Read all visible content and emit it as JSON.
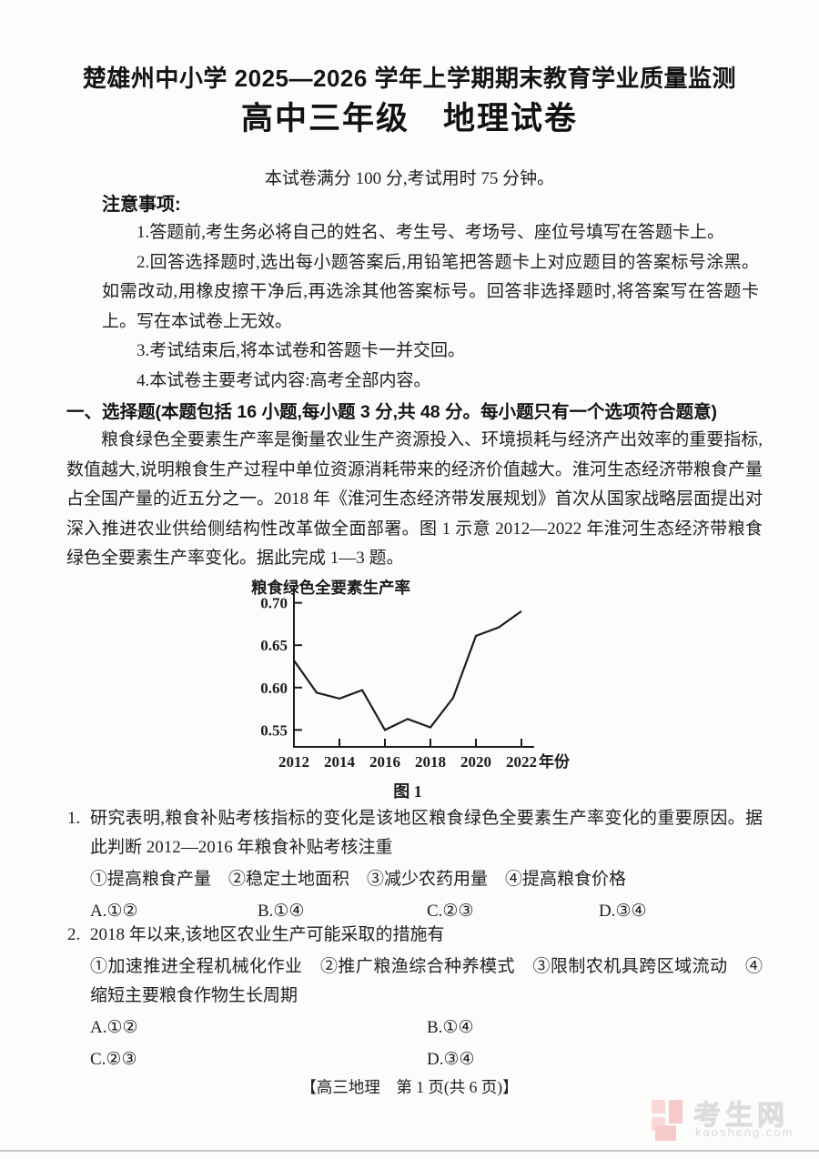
{
  "doc": {
    "title_line1": "楚雄州中小学 2025—2026 学年上学期期末教育学业质量监测",
    "title_line2": "高中三年级　地理试卷",
    "exam_info": "本试卷满分 100 分,考试用时 75 分钟。",
    "footer": "【高三地理　第 1 页(共 6 页)】"
  },
  "notice": {
    "heading": "注意事项:",
    "items": [
      "1.答题前,考生务必将自己的姓名、考生号、考场号、座位号填写在答题卡上。",
      "2.回答选择题时,选出每小题答案后,用铅笔把答题卡上对应题目的答案标号涂黑。如需改动,用橡皮擦干净后,再选涂其他答案标号。回答非选择题时,将答案写在答题卡上。写在本试卷上无效。",
      "3.考试结束后,将本试卷和答题卡一并交回。",
      "4.本试卷主要考试内容:高考全部内容。"
    ]
  },
  "section_one": {
    "heading": "一、选择题(本题包括 16 小题,每小题 3 分,共 48 分。每小题只有一个选项符合题意)",
    "intro": "粮食绿色全要素生产率是衡量农业生产资源投入、环境损耗与经济产出效率的重要指标,数值越大,说明粮食生产过程中单位资源消耗带来的经济价值越大。淮河生态经济带粮食产量占全国产量的近五分之一。2018 年《淮河生态经济带发展规划》首次从国家战略层面提出对深入推进农业供给侧结构性改革做全面部署。图 1 示意 2012—2022 年淮河生态经济带粮食绿色全要素生产率变化。据此完成 1—3 题。"
  },
  "questions": [
    {
      "number": "1.",
      "stem": "研究表明,粮食补贴考核指标的变化是该地区粮食绿色全要素生产率变化的重要原因。据此判断 2012—2016 年粮食补贴考核注重",
      "sub_options": "①提高粮食产量　②稳定土地面积　③减少农药用量　④提高粮食价格",
      "choices": [
        "A.①②",
        "B.①④",
        "C.②③",
        "D.③④"
      ]
    },
    {
      "number": "2.",
      "stem": "2018 年以来,该地区农业生产可能采取的措施有",
      "sub_options": "①加速推进全程机械化作业　②推广粮渔综合种养模式　③限制农机具跨区域流动　④缩短主要粮食作物生长周期",
      "choices": [
        "A.①②",
        "B.①④",
        "C.②③",
        "D.③④"
      ]
    }
  ],
  "watermark": {
    "cn": "考生网",
    "en": "kaosheng.com",
    "logo_pink_light": "#fbd8d8",
    "logo_pink_dark": "#f7caca"
  },
  "chart_data": {
    "type": "line",
    "title": "",
    "ylabel": "粮食绿色全要素生产率",
    "xlabel": "年份",
    "caption": "图 1",
    "x": [
      2012,
      2013,
      2014,
      2015,
      2016,
      2017,
      2018,
      2019,
      2020,
      2021,
      2022
    ],
    "values": [
      0.632,
      0.594,
      0.587,
      0.597,
      0.55,
      0.563,
      0.553,
      0.588,
      0.661,
      0.671,
      0.69
    ],
    "yticks": [
      0.55,
      0.6,
      0.65,
      0.7
    ],
    "xticks": [
      2012,
      2014,
      2016,
      2018,
      2020,
      2022
    ],
    "ylim": [
      0.53,
      0.72
    ],
    "grid": false,
    "legend": "none",
    "axis_color": "#1c1c1c",
    "line_color": "#1c1c1c"
  }
}
